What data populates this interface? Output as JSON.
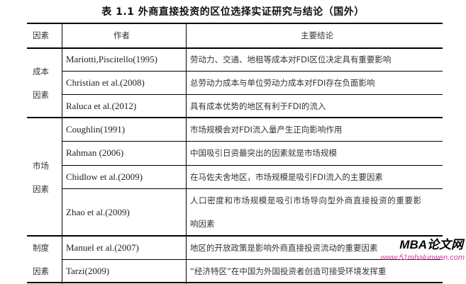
{
  "title": "表 1.1   外商直接投资的区位选择实证研究与结论（国外）",
  "headers": [
    "因素",
    "作者",
    "主要结论"
  ],
  "groups": [
    {
      "factor_line1": "成本",
      "factor_line2": "因素"
    },
    {
      "factor_line1": "市场",
      "factor_line2": "因素"
    },
    {
      "factor_line1": "制度",
      "factor_line2": "因素"
    }
  ],
  "rows": [
    {
      "author": "Mariotti,Piscitello(1995)",
      "conclusion": "劳动力、交通、地租等成本对FDI区位决定具有重要影响"
    },
    {
      "author": "Christian et al.(2008)",
      "conclusion": "总劳动力成本与单位劳动力成本对FDI存在负面影响"
    },
    {
      "author": "Raluca et al.(2012)",
      "conclusion": "具有成本优势的地区有利于FDI的流入"
    },
    {
      "author": "Coughlin(1991)",
      "conclusion": "市场规模会对FDI流入量产生正向影响作用"
    },
    {
      "author": "Rahman (2006)",
      "conclusion": "中国吸引日资最突出的因素就是市场规模"
    },
    {
      "author": "Chidlow et al.(2009)",
      "conclusion": "在马佐夫舍地区，市场规模是吸引FDI流入的主要因素"
    },
    {
      "author": "Zhao et al.(2009)",
      "conclusion": "人口密度和市场规模是吸引市场导向型外商直接投资的重要影",
      "conclusion_line2": "响因素"
    },
    {
      "author": "Manuel et al.(2007)",
      "conclusion": "地区的开放政策是影响外商直接投资流动的重要因素"
    },
    {
      "author": "Tarzi(2009)",
      "conclusion": "“经济特区”在中国为外国投资者创造可接受环境发挥重"
    }
  ],
  "watermark": {
    "brand": "MBA论文网",
    "site": "www.51mbalunwen.com"
  }
}
